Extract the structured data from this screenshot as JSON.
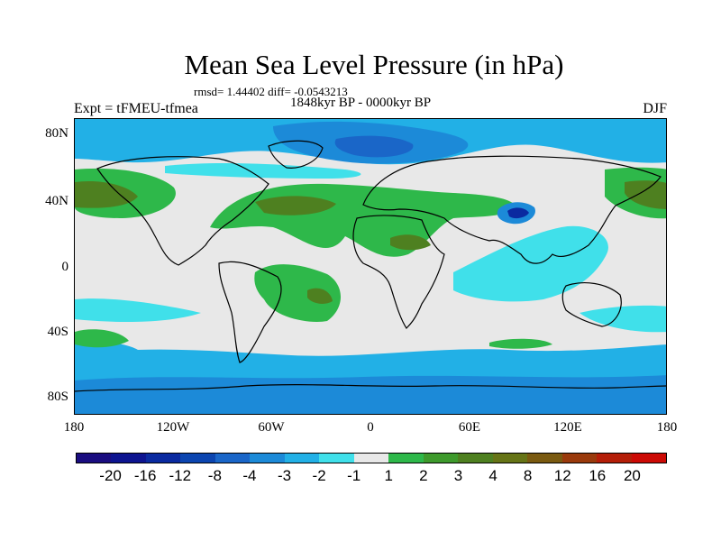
{
  "title": "Mean Sea Level Pressure (in hPa)",
  "stats": "rmsd= 1.44402 diff= -0.0543213",
  "period": "1848kyr BP - 0000kyr BP",
  "experiment": "Expt = tFMEU-tfmea",
  "season": "DJF",
  "lat_labels": [
    "80N",
    "40N",
    "0",
    "40S",
    "80S"
  ],
  "lon_labels": [
    "180",
    "120W",
    "60W",
    "0",
    "60E",
    "120E",
    "180"
  ],
  "colorbar": {
    "colors": [
      "#1a0d80",
      "#0d1490",
      "#0a2aa0",
      "#0c45b0",
      "#1a66c8",
      "#1c8ad8",
      "#22b0e6",
      "#40e0ea",
      "#e8e8e8",
      "#2eb84a",
      "#3e9a2c",
      "#4e8020",
      "#667416",
      "#7a5a10",
      "#9a3a0c",
      "#b41e08",
      "#cc0a05"
    ],
    "labels": [
      "-20",
      "-16",
      "-12",
      "-8",
      "-4",
      "-3",
      "-2",
      "-1",
      "1",
      "2",
      "3",
      "4",
      "8",
      "12",
      "16",
      "20"
    ]
  }
}
